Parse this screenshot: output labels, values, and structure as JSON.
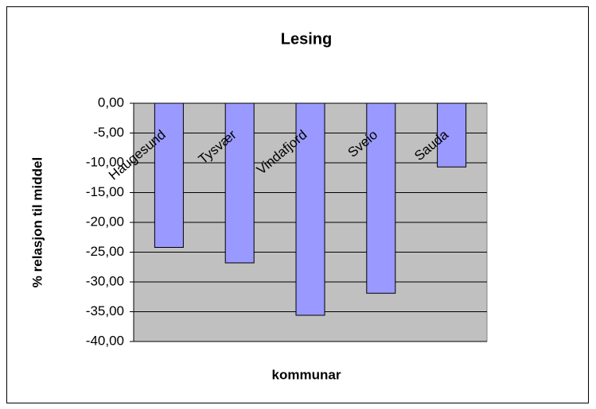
{
  "chart_data": {
    "type": "bar",
    "title": "Lesing",
    "x_label": "kommunar",
    "y_label": "% relasjon til middel",
    "categories": [
      "Haugesund",
      "Tysvær",
      "Vindafjord",
      "Sveio",
      "Sauda"
    ],
    "values": [
      -24.2,
      -26.8,
      -35.6,
      -31.9,
      -10.7
    ],
    "color": "#9999ff",
    "ylim": [
      -40,
      0
    ],
    "yticks": [
      {
        "value": 0,
        "label": "0,00"
      },
      {
        "value": -5,
        "label": "-5,00"
      },
      {
        "value": -10,
        "label": "-10,00"
      },
      {
        "value": -15,
        "label": "-15,00"
      },
      {
        "value": -20,
        "label": "-20,00"
      },
      {
        "value": -25,
        "label": "-25,00"
      },
      {
        "value": -30,
        "label": "-30,00"
      },
      {
        "value": -35,
        "label": "-35,00"
      },
      {
        "value": -40,
        "label": "-40,00"
      }
    ],
    "grid": true
  }
}
